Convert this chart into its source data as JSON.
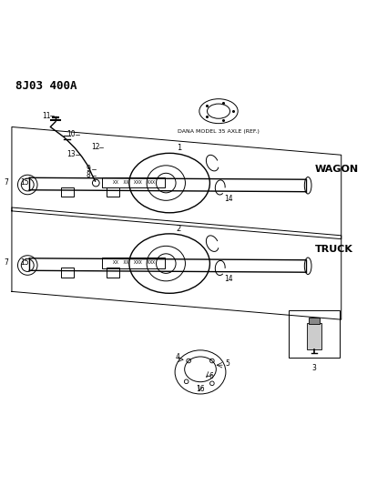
{
  "title": "8J03 400A",
  "bg_color": "#ffffff",
  "fg_color": "#000000",
  "dana_label": "DANA MODEL 35 AXLE (REF.)",
  "wagon_label": "WAGON",
  "truck_label": "TRUCK",
  "lw_thin": 0.7,
  "lw_med": 1.0,
  "lw_thick": 1.5
}
